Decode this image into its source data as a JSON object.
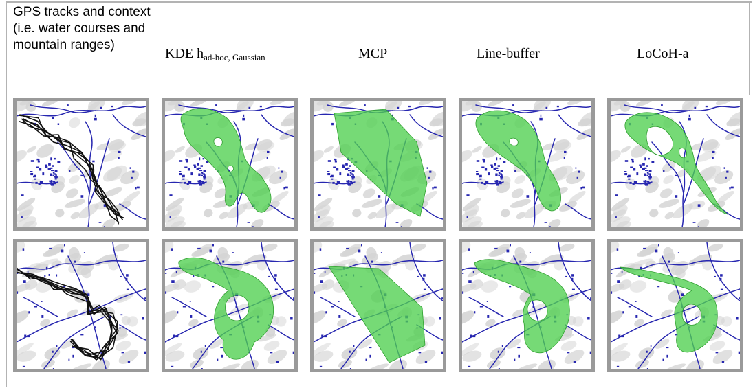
{
  "headers": {
    "col1": "GPS tracks and context (i.e. water courses and mountain ranges)",
    "col2_main": "KDE h",
    "col2_sub": "ad-hoc, Gaussian",
    "col3": "MCP",
    "col4": "Line-buffer",
    "col5": "LoCoH-a"
  },
  "colors": {
    "range_fill": "#4fd04f",
    "range_stroke": "#2e9e2e",
    "water": "#2727b0",
    "terrain": "#d4d4d4",
    "gps_track": "#111111",
    "panel_border": "#9a9a9a"
  },
  "rows": [
    {
      "track_id": "1",
      "panels": [
        {
          "method": "gps",
          "icon": "gps-track-map"
        },
        {
          "method": "kde",
          "icon": "kde-range-map"
        },
        {
          "method": "mcp",
          "icon": "mcp-range-map"
        },
        {
          "method": "line-buffer",
          "icon": "line-buffer-range-map"
        },
        {
          "method": "locoh",
          "icon": "locoh-range-map"
        }
      ]
    },
    {
      "track_id": "2",
      "panels": [
        {
          "method": "gps",
          "icon": "gps-track-map"
        },
        {
          "method": "kde",
          "icon": "kde-range-map"
        },
        {
          "method": "mcp",
          "icon": "mcp-range-map"
        },
        {
          "method": "line-buffer",
          "icon": "line-buffer-range-map"
        },
        {
          "method": "locoh",
          "icon": "locoh-range-map"
        }
      ]
    }
  ]
}
